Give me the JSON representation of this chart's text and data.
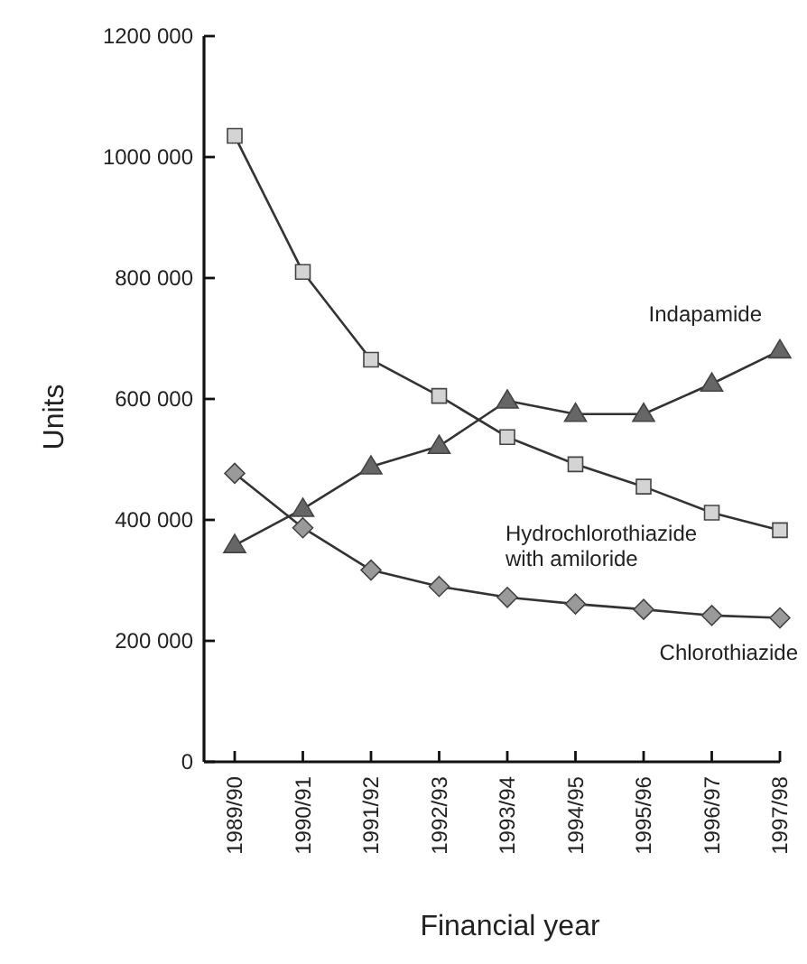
{
  "chart_data": {
    "type": "line",
    "xlabel": "Financial year",
    "ylabel": "Units",
    "categories": [
      "1989/90",
      "1990/91",
      "1991/92",
      "1992/93",
      "1993/94",
      "1994/95",
      "1995/96",
      "1996/97",
      "1997/98"
    ],
    "ylim": [
      0,
      1200000
    ],
    "yticks": [
      0,
      {
        "value": 200000,
        "label": "200 000"
      },
      {
        "value": 400000,
        "label": "400 000"
      },
      {
        "value": 600000,
        "label": "600 000"
      },
      {
        "value": 800000,
        "label": "800 000"
      },
      {
        "value": 1000000,
        "label": "1000 000"
      },
      {
        "value": 1200000,
        "label": "1200 000"
      }
    ],
    "grid": false,
    "line_style": "solid",
    "series": [
      {
        "name": "Indapamide",
        "color": "#333333",
        "marker": "triangle",
        "values": [
          358000,
          418000,
          488000,
          522000,
          597000,
          575000,
          575000,
          625000,
          680000
        ]
      },
      {
        "name": "Hydrochlorothiazide with amiloride",
        "color": "#333333",
        "marker": "square",
        "values": [
          1035000,
          810000,
          665000,
          605000,
          537000,
          492000,
          455000,
          412000,
          383000
        ]
      },
      {
        "name": "Chlorothiazide",
        "color": "#333333",
        "marker": "diamond",
        "values": [
          477000,
          387000,
          317000,
          290000,
          272000,
          261000,
          252000,
          242000,
          238000
        ]
      }
    ]
  }
}
